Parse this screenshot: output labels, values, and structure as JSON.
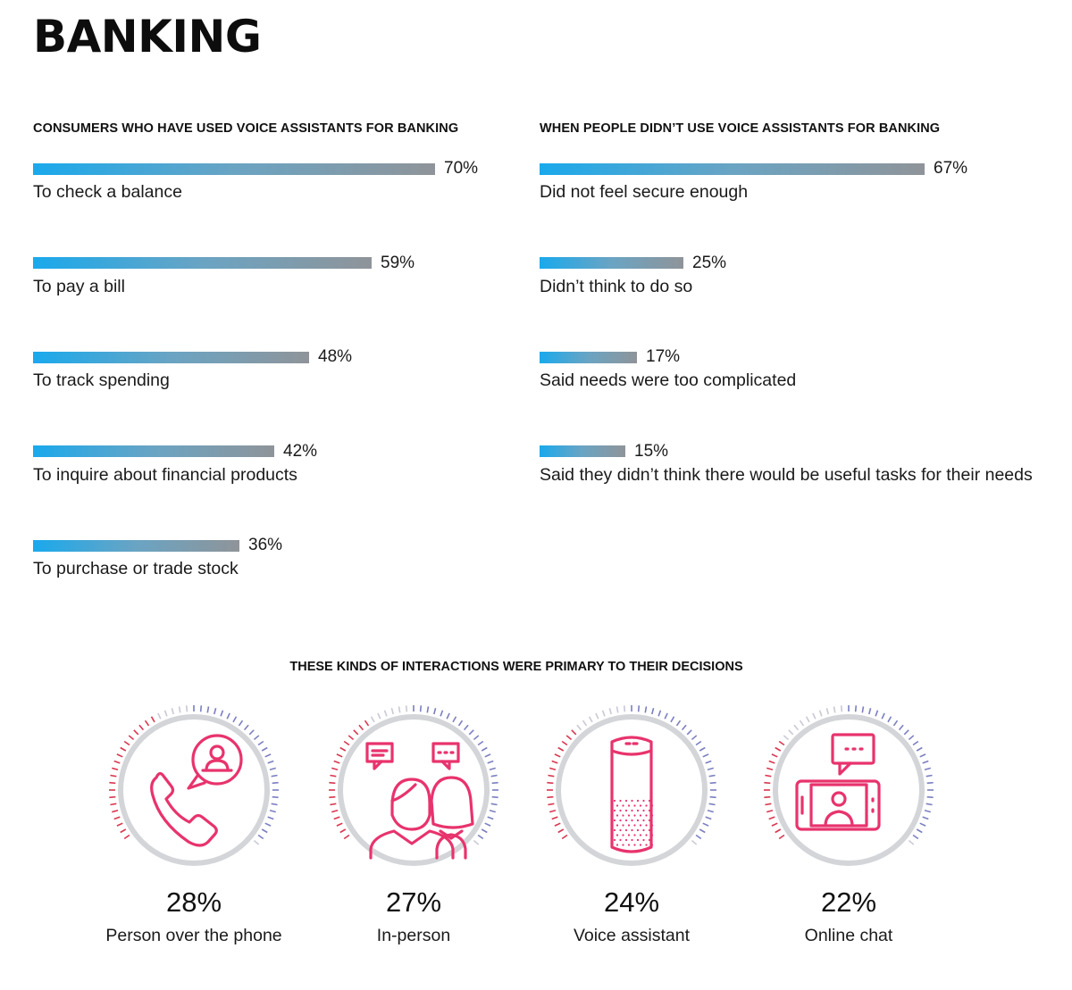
{
  "page_title": "BANKING",
  "chart_data": [
    {
      "type": "bar",
      "orientation": "horizontal",
      "title": "CONSUMERS WHO HAVE USED VOICE ASSISTANTS FOR BANKING",
      "categories": [
        "To check a balance",
        "To pay a bill",
        "To track spending",
        "To inquire about financial products",
        "To purchase or trade stock"
      ],
      "values": [
        70,
        59,
        48,
        42,
        36
      ],
      "value_labels": [
        "70%",
        "59%",
        "48%",
        "42%",
        "36%"
      ],
      "unit": "%",
      "xlim": [
        0,
        70
      ]
    },
    {
      "type": "bar",
      "orientation": "horizontal",
      "title": "WHEN PEOPLE DIDN’T USE VOICE ASSISTANTS FOR BANKING",
      "categories": [
        "Did not feel secure enough",
        "Didn’t think to do so",
        "Said needs were too complicated",
        "Said they didn’t think there would be useful tasks for their needs"
      ],
      "values": [
        67,
        25,
        17,
        15
      ],
      "value_labels": [
        "67%",
        "25%",
        "17%",
        "15%"
      ],
      "unit": "%",
      "xlim": [
        0,
        70
      ]
    },
    {
      "type": "gauge",
      "title": "THESE KINDS OF INTERACTIONS WERE PRIMARY TO THEIR DECISIONS",
      "categories": [
        "Person over the phone",
        "In-person",
        "Voice assistant",
        "Online chat"
      ],
      "values": [
        28,
        27,
        24,
        22
      ],
      "value_labels": [
        "28%",
        "27%",
        "24%",
        "22%"
      ],
      "icons": [
        "phone-contact-icon",
        "two-people-chat-icon",
        "smart-speaker-icon",
        "video-chat-icon"
      ],
      "unit": "%"
    }
  ],
  "colors": {
    "bar_start": "#1aa9ec",
    "bar_end": "#8f9499",
    "icon_pink": "#e8336d",
    "tick_red": "#d9364f",
    "tick_blue": "#7b7fc0",
    "ring_gray": "#d3d5d8"
  }
}
